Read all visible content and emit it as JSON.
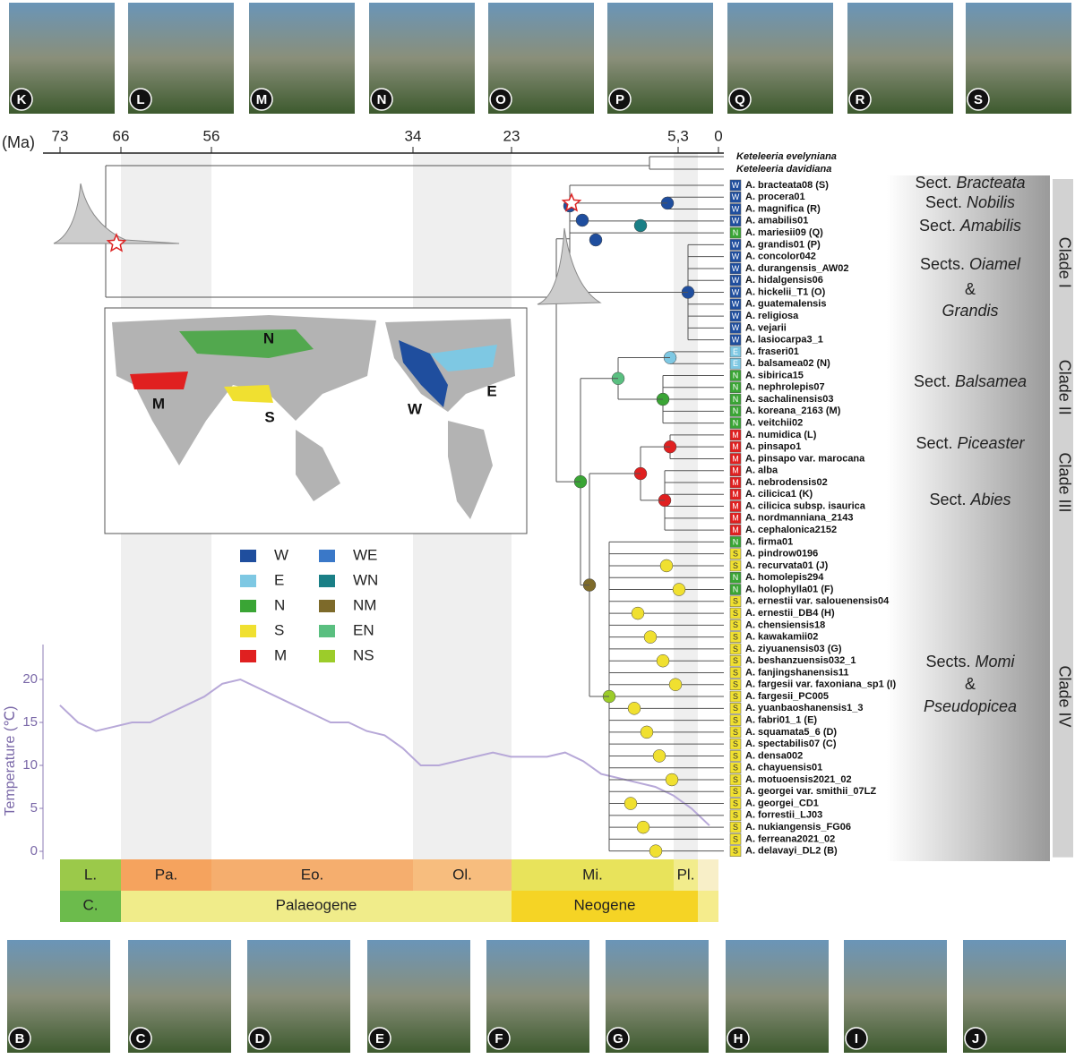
{
  "photos_top": [
    "K",
    "L",
    "M",
    "N",
    "O",
    "P",
    "Q",
    "R",
    "S"
  ],
  "photos_bottom": [
    "B",
    "C",
    "D",
    "E",
    "F",
    "G",
    "H",
    "I",
    "J"
  ],
  "time_axis": {
    "unit": "(Ma)",
    "ticks": [
      "73",
      "66",
      "56",
      "34",
      "23",
      "5,3",
      "0"
    ]
  },
  "outgroup": [
    "Keteleeria evelyniana",
    "Keteleeria davidiana"
  ],
  "taxa": [
    {
      "code": "W",
      "name": "A. bracteata08 (S)"
    },
    {
      "code": "W",
      "name": "A. procera01"
    },
    {
      "code": "W",
      "name": "A. magnifica (R)"
    },
    {
      "code": "W",
      "name": "A. amabilis01"
    },
    {
      "code": "N",
      "name": "A. mariesii09 (Q)"
    },
    {
      "code": "W",
      "name": "A. grandis01 (P)"
    },
    {
      "code": "W",
      "name": "A. concolor042"
    },
    {
      "code": "W",
      "name": "A. durangensis_AW02"
    },
    {
      "code": "W",
      "name": "A. hidalgensis06"
    },
    {
      "code": "W",
      "name": "A. hickelii_T1 (O)"
    },
    {
      "code": "W",
      "name": "A. guatemalensis"
    },
    {
      "code": "W",
      "name": "A. religiosa"
    },
    {
      "code": "W",
      "name": "A. vejarii"
    },
    {
      "code": "W",
      "name": "A. lasiocarpa3_1"
    },
    {
      "code": "E",
      "name": "A. fraseri01"
    },
    {
      "code": "E",
      "name": "A. balsamea02 (N)"
    },
    {
      "code": "N",
      "name": "A. sibirica15"
    },
    {
      "code": "N",
      "name": "A. nephrolepis07"
    },
    {
      "code": "N",
      "name": "A. sachalinensis03"
    },
    {
      "code": "N",
      "name": "A. koreana_2163 (M)"
    },
    {
      "code": "N",
      "name": "A. veitchii02"
    },
    {
      "code": "M",
      "name": "A. numidica (L)"
    },
    {
      "code": "M",
      "name": "A. pinsapo1"
    },
    {
      "code": "M",
      "name": "A. pinsapo var. marocana"
    },
    {
      "code": "M",
      "name": "A. alba"
    },
    {
      "code": "M",
      "name": "A. nebrodensis02"
    },
    {
      "code": "M",
      "name": "A. cilicica1 (K)"
    },
    {
      "code": "M",
      "name": "A. cilicica subsp. isaurica"
    },
    {
      "code": "M",
      "name": "A. nordmanniana_2143"
    },
    {
      "code": "M",
      "name": "A. cephalonica2152"
    },
    {
      "code": "N",
      "name": "A. firma01"
    },
    {
      "code": "S",
      "name": "A. pindrow0196"
    },
    {
      "code": "S",
      "name": "A. recurvata01 (J)"
    },
    {
      "code": "N",
      "name": "A. homolepis294"
    },
    {
      "code": "N",
      "name": "A. holophylla01 (F)"
    },
    {
      "code": "S",
      "name": "A. ernestii var. salouenensis04"
    },
    {
      "code": "S",
      "name": "A. ernestii_DB4 (H)"
    },
    {
      "code": "S",
      "name": "A. chensiensis18"
    },
    {
      "code": "S",
      "name": "A. kawakamii02"
    },
    {
      "code": "S",
      "name": "A. ziyuanensis03 (G)"
    },
    {
      "code": "S",
      "name": "A. beshanzuensis032_1"
    },
    {
      "code": "S",
      "name": "A. fanjingshanensis11"
    },
    {
      "code": "S",
      "name": "A. fargesii var. faxoniana_sp1 (I)"
    },
    {
      "code": "S",
      "name": "A. fargesii_PC005"
    },
    {
      "code": "S",
      "name": "A. yuanbaoshanensis1_3"
    },
    {
      "code": "S",
      "name": "A. fabri01_1 (E)"
    },
    {
      "code": "S",
      "name": "A. squamata5_6 (D)"
    },
    {
      "code": "S",
      "name": "A. spectabilis07 (C)"
    },
    {
      "code": "S",
      "name": "A. densa002"
    },
    {
      "code": "S",
      "name": "A. chayuensis01"
    },
    {
      "code": "S",
      "name": "A. motuoensis2021_02"
    },
    {
      "code": "S",
      "name": "A. georgei var. smithii_07LZ"
    },
    {
      "code": "S",
      "name": "A. georgei_CD1"
    },
    {
      "code": "S",
      "name": "A. forrestii_LJ03"
    },
    {
      "code": "S",
      "name": "A. nukiangensis_FG06"
    },
    {
      "code": "S",
      "name": "A. ferreana2021_02"
    },
    {
      "code": "S",
      "name": "A. delavayi_DL2 (B)"
    }
  ],
  "sections": [
    {
      "lines": [
        {
          "prefix": "Sect.",
          "name": "Bracteata"
        }
      ]
    },
    {
      "lines": [
        {
          "prefix": "Sect.",
          "name": "Nobilis"
        }
      ]
    },
    {
      "lines": [
        {
          "prefix": "Sect.",
          "name": "Amabilis"
        }
      ]
    },
    {
      "lines": [
        {
          "prefix": "Sects.",
          "name": "Oiamel"
        },
        {
          "name": "&"
        },
        {
          "name": "Grandis"
        }
      ]
    },
    {
      "lines": [
        {
          "prefix": "Sect.",
          "name": "Balsamea"
        }
      ]
    },
    {
      "lines": [
        {
          "prefix": "Sect.",
          "name": "Piceaster"
        }
      ]
    },
    {
      "lines": [
        {
          "prefix": "Sect.",
          "name": "Abies"
        }
      ]
    },
    {
      "lines": [
        {
          "prefix": "Sects.",
          "name": "Momi"
        },
        {
          "name": "&"
        },
        {
          "name": "Pseudopicea"
        }
      ]
    }
  ],
  "clades": [
    "Clade I",
    "Clade II",
    "Clade III",
    "Clade IV"
  ],
  "map_labels": [
    "N",
    "M",
    "S",
    "W",
    "E"
  ],
  "legend": [
    {
      "code": "W",
      "color": "#1f4e9e"
    },
    {
      "code": "E",
      "color": "#7ec8e3"
    },
    {
      "code": "N",
      "color": "#3aa535"
    },
    {
      "code": "S",
      "color": "#f0e030"
    },
    {
      "code": "M",
      "color": "#e02020"
    },
    {
      "code": "WE",
      "color": "#3a78c8"
    },
    {
      "code": "WN",
      "color": "#1a7f86"
    },
    {
      "code": "NM",
      "color": "#7d6a2a"
    },
    {
      "code": "EN",
      "color": "#5abf80"
    },
    {
      "code": "NS",
      "color": "#9ccc2a"
    }
  ],
  "temperature": {
    "label": "Temperature (℃)",
    "yticks": [
      0,
      5,
      10,
      15,
      20
    ],
    "age": [
      73,
      71,
      69,
      67,
      65,
      63,
      61,
      59,
      57,
      55,
      53,
      51,
      49,
      47,
      45,
      43,
      41,
      39,
      37,
      35,
      33,
      31,
      29,
      27,
      25,
      23,
      21,
      19,
      17,
      15,
      13,
      11,
      9,
      7,
      5,
      3,
      1
    ],
    "values": [
      17,
      15,
      14,
      14.5,
      15,
      15,
      16,
      17,
      18,
      19.5,
      20,
      19,
      18,
      17,
      16,
      15,
      15,
      14,
      13.5,
      12,
      10,
      10,
      10.5,
      11,
      11.5,
      11,
      11,
      11,
      11.5,
      10.5,
      9,
      8.5,
      8,
      7.5,
      6.5,
      5,
      3
    ]
  },
  "epochs": [
    "L.",
    "Pa.",
    "Eo.",
    "Ol.",
    "Mi.",
    "Pl."
  ],
  "periods": [
    "C.",
    "Palaeogene",
    "Neogene"
  ]
}
